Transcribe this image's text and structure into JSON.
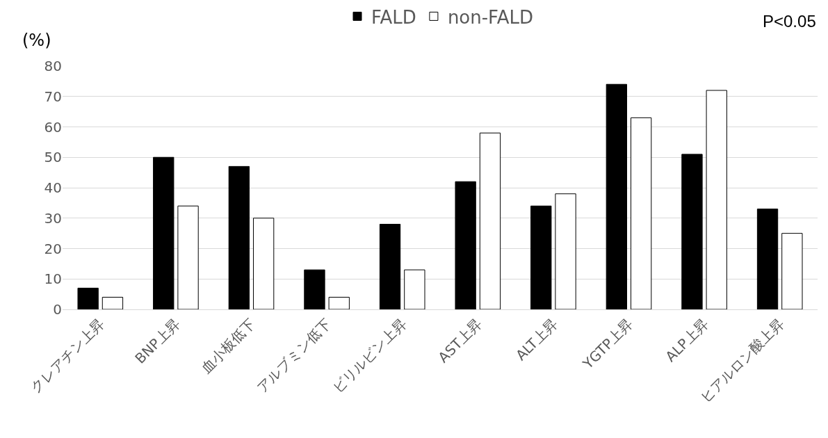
{
  "chart_data": {
    "type": "bar",
    "ylabel": "(%)",
    "annotations": [
      "P<0.05"
    ],
    "categories": [
      "クレアチン上昇",
      "BNP上昇",
      "血小板低下",
      "アルブミン低下",
      "ビリルビン上昇",
      "AST上昇",
      "ALT上昇",
      "YGTP上昇",
      "ALP上昇",
      "ヒアルロン酸上昇"
    ],
    "series": [
      {
        "name": "FALD",
        "color": "#000000",
        "values": [
          7,
          50,
          47,
          13,
          28,
          42,
          34,
          74,
          51,
          33
        ]
      },
      {
        "name": "non-FALD",
        "color": "#ffffff",
        "values": [
          4,
          34,
          30,
          4,
          13,
          58,
          38,
          63,
          72,
          25
        ]
      }
    ],
    "ylim": [
      0,
      80
    ],
    "yticks": [
      0,
      10,
      20,
      30,
      40,
      50,
      60,
      70,
      80
    ],
    "grid": "y",
    "legend": "top"
  }
}
